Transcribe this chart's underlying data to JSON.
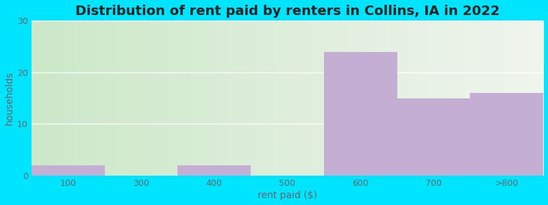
{
  "categories": [
    "100",
    "300",
    "400",
    "500",
    "600",
    "700",
    ">800"
  ],
  "values": [
    2,
    0,
    2,
    0,
    24,
    15,
    16
  ],
  "bar_color": "#c4aed4",
  "title": "Distribution of rent paid by renters in Collins, IA in 2022",
  "xlabel": "rent paid ($)",
  "ylabel": "households",
  "ylim": [
    0,
    30
  ],
  "yticks": [
    0,
    10,
    20,
    30
  ],
  "title_fontsize": 14,
  "axis_fontsize": 10,
  "tick_fontsize": 9,
  "bg_color_left": "#cce8c8",
  "bg_color_right": "#f0f5ee",
  "figure_bg": "#00e5ff",
  "bar_width": 1.0,
  "grid_color": "#ffffff",
  "text_color": "#666666"
}
